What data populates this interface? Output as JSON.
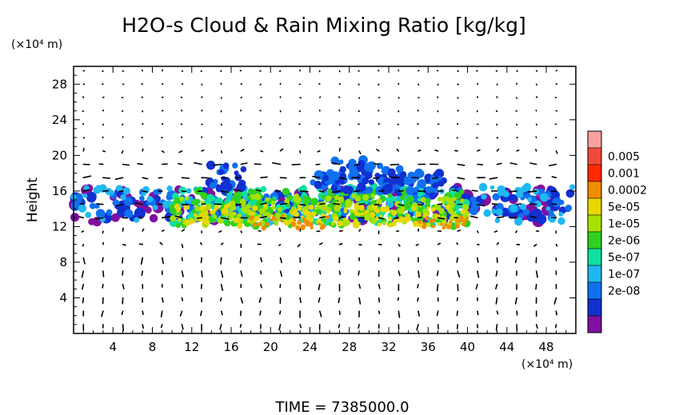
{
  "chart_data": {
    "type": "heatmap",
    "title": "H2O-s Cloud & Rain Mixing Ratio [kg/kg]",
    "ylabel": "Height",
    "y_unit": "(×10⁴ m)",
    "x_unit": "(×10⁴ m)",
    "xlim": [
      0,
      51
    ],
    "ylim": [
      0,
      30
    ],
    "x_ticks": [
      "4",
      "8",
      "12",
      "16",
      "20",
      "24",
      "28",
      "32",
      "36",
      "40",
      "44",
      "48"
    ],
    "y_ticks": [
      "4",
      "8",
      "12",
      "16",
      "20",
      "24",
      "28"
    ],
    "x_tick_values": [
      4,
      8,
      12,
      16,
      20,
      24,
      28,
      32,
      36,
      40,
      44,
      48
    ],
    "y_tick_values": [
      4,
      8,
      12,
      16,
      20,
      24,
      28
    ],
    "colorbar": {
      "labels": [
        "0.005",
        "0.001",
        "0.0002",
        "5e-05",
        "1e-05",
        "2e-06",
        "5e-07",
        "1e-07",
        "2e-08"
      ],
      "colors": [
        "#f7a0a0",
        "#f04a3a",
        "#ff2a00",
        "#f08c00",
        "#e8d800",
        "#a8e000",
        "#30d020",
        "#10e0a0",
        "#20b8f0",
        "#1070f0",
        "#1030d0",
        "#8010a0"
      ]
    },
    "cloud_layer": {
      "x_range": [
        0,
        51
      ],
      "base_height": 11.5,
      "top_height": 19.5,
      "peak_band": [
        12,
        14
      ]
    },
    "vector_field": "wind arrows",
    "footer": "TIME  =  7385000.0"
  }
}
